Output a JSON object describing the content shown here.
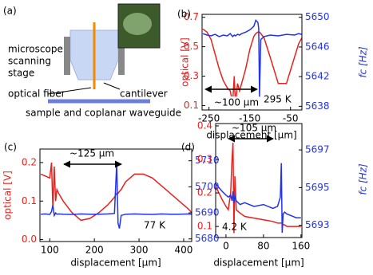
{
  "panel_a": {
    "label": "(a)",
    "labels": [
      "microscope",
      "scanning",
      "stage",
      "optical fiber",
      "cantilever",
      "sample and coplanar waveguide"
    ]
  },
  "chart_data": [
    {
      "type": "line",
      "panel_label": "(b)",
      "xlabel": "displacement [μm]",
      "ylabel": "optical [V]",
      "y2label": "fc [Hz]",
      "annotations": [
        "~100 μm",
        "295 K"
      ],
      "x": [
        -265,
        -255,
        -245,
        -235,
        -225,
        -215,
        -205,
        -198,
        -192,
        -188,
        -185,
        -180,
        -175,
        -170,
        -160,
        -150,
        -140,
        -135,
        -130,
        -128,
        -126,
        -123,
        -115,
        -100,
        -80,
        -60,
        -40,
        -30,
        -22
      ],
      "xlim": [
        -267,
        -22
      ],
      "xticks": [
        -250,
        -150,
        -50
      ],
      "ylim": [
        0.07,
        0.72
      ],
      "yticks": [
        0.1,
        0.3,
        0.5,
        0.7
      ],
      "y2lim": [
        5637.5,
        5650.4
      ],
      "y2ticks": [
        5638,
        5642,
        5646,
        5650
      ],
      "series": [
        {
          "color": "#e8211d",
          "values": [
            0.62,
            0.6,
            0.55,
            0.45,
            0.35,
            0.27,
            0.22,
            0.2,
            0.12,
            0.3,
            0.1,
            0.25,
            0.2,
            0.25,
            0.35,
            0.48,
            0.57,
            0.59,
            0.6,
            0.6,
            0.6,
            0.59,
            0.56,
            0.43,
            0.25,
            0.25,
            0.43,
            0.52,
            0.56
          ]
        },
        {
          "color": "#2233ee",
          "axis": "y2",
          "values": [
            5647.8,
            5647.6,
            5647.5,
            5647.7,
            5647.4,
            5647.6,
            5647.5,
            5647.8,
            5647.4,
            5647.6,
            5647.5,
            5647.7,
            5647.6,
            5647.8,
            5648.0,
            5648.3,
            5648.8,
            5649.6,
            5649.3,
            5648.5,
            5639.3,
            5647.0,
            5647.4,
            5647.6,
            5647.5,
            5647.7,
            5647.6,
            5647.8,
            5647.7
          ]
        }
      ]
    },
    {
      "type": "line",
      "panel_label": "(c)",
      "xlabel": "displacement [μm]",
      "ylabel": "optical [V]",
      "annotations": [
        "~125 μm",
        "77 K"
      ],
      "x": [
        80,
        90,
        100,
        104,
        107,
        110,
        113,
        116,
        120,
        130,
        150,
        170,
        190,
        210,
        230,
        245,
        250,
        253,
        256,
        260,
        270,
        290,
        310,
        330,
        350,
        370,
        390,
        410,
        418
      ],
      "xlim": [
        78,
        418
      ],
      "xticks": [
        100,
        200,
        300,
        400
      ],
      "ylim": [
        -0.005,
        0.235
      ],
      "yticks": [
        {
          "value": 0,
          "label": "0.0"
        },
        0.1,
        0.2
      ],
      "y2lim": [
        5679,
        5714.5
      ],
      "y2ticks": [
        5680,
        5690,
        5700,
        5710
      ],
      "series": [
        {
          "color": "#e8211d",
          "values": [
            0.17,
            0.165,
            0.16,
            0.2,
            0.08,
            0.19,
            0.1,
            0.13,
            0.12,
            0.1,
            0.07,
            0.05,
            0.055,
            0.07,
            0.09,
            0.11,
            0.12,
            0.12,
            0.125,
            0.13,
            0.15,
            0.17,
            0.17,
            0.16,
            0.14,
            0.12,
            0.1,
            0.08,
            0.07
          ]
        },
        {
          "color": "#2233ee",
          "axis": "y2",
          "values": [
            5689.5,
            5689.6,
            5689.4,
            5690.5,
            5693,
            5689,
            5690,
            5689.5,
            5689.6,
            5689.5,
            5689.4,
            5689.6,
            5689.5,
            5689.5,
            5689.6,
            5689.8,
            5709,
            5686,
            5684,
            5689,
            5689.5,
            5689.6,
            5689.5,
            5689.4,
            5689.6,
            5689.5,
            5689.5,
            5689.6,
            5689.5
          ]
        }
      ]
    },
    {
      "type": "line",
      "panel_label": "(d)",
      "xlabel": "displacement [μm]",
      "y2label": "fc [Hz]",
      "annotations": [
        "~105 μm",
        "4.2 K"
      ],
      "x": [
        -22,
        -15,
        -8,
        0,
        5,
        10,
        13,
        15,
        17,
        19,
        22,
        30,
        40,
        60,
        80,
        100,
        110,
        116,
        118,
        120,
        122,
        125,
        130,
        140,
        150,
        160
      ],
      "xlim": [
        -22,
        162
      ],
      "xticks": [
        0,
        80,
        160
      ],
      "ylim": [
        0.067,
        0.407
      ],
      "yticks": [
        0.1,
        0.2,
        0.3,
        0.4
      ],
      "y2lim": [
        5692.35,
        5698.4
      ],
      "y2ticks": [
        5693,
        5695,
        5697
      ],
      "series": [
        {
          "color": "#e8211d",
          "values": [
            0.22,
            0.2,
            0.18,
            0.16,
            0.15,
            0.2,
            0.3,
            0.35,
            0.08,
            0.25,
            0.15,
            0.14,
            0.13,
            0.125,
            0.12,
            0.115,
            0.11,
            0.11,
            0.11,
            0.11,
            0.105,
            0.105,
            0.1,
            0.1,
            0.1,
            0.1
          ]
        },
        {
          "color": "#2233ee",
          "axis": "y2",
          "values": [
            5695.2,
            5695.0,
            5694.8,
            5694.6,
            5694.5,
            5694.6,
            5694.3,
            5694.8,
            5694.2,
            5694.5,
            5694.3,
            5694.1,
            5694.2,
            5694.0,
            5694.1,
            5693.9,
            5694.0,
            5694.5,
            5696.3,
            5692.6,
            5693.6,
            5693.7,
            5693.6,
            5693.5,
            5693.4,
            5693.4
          ]
        }
      ]
    }
  ]
}
